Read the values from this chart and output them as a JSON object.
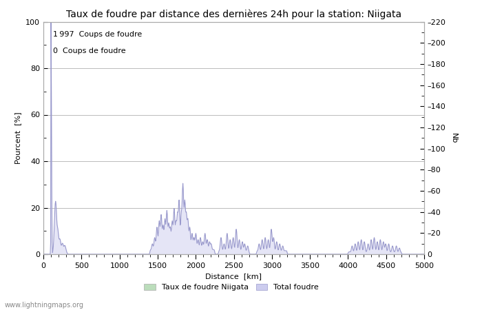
{
  "title": "Taux de foudre par distance des dernières 24h pour la station: Niigata",
  "xlabel": "Distance  [km]",
  "ylabel_left": "Pourcent  [%]",
  "ylabel_right": "Nb",
  "annotation_line1": "1 997  Coups de foudre",
  "annotation_line2": "0  Coups de foudre",
  "xlim": [
    0,
    5000
  ],
  "ylim_left": [
    0,
    100
  ],
  "ylim_right": [
    0,
    220
  ],
  "yticks_left": [
    0,
    20,
    40,
    60,
    80,
    100
  ],
  "yticks_right": [
    0,
    20,
    40,
    60,
    80,
    100,
    120,
    140,
    160,
    180,
    200,
    220
  ],
  "xticks": [
    0,
    500,
    1000,
    1500,
    2000,
    2500,
    3000,
    3500,
    4000,
    4500,
    5000
  ],
  "legend_label1": "Taux de foudre Niigata",
  "legend_label2": "Total foudre",
  "line_color": "#9999cc",
  "fill_color": "#ccccee",
  "grid_color": "#bbbbbb",
  "bg_color": "#ffffff",
  "watermark": "www.lightningmaps.org",
  "title_fontsize": 10,
  "axis_fontsize": 8,
  "tick_fontsize": 8,
  "annotation_fontsize": 8
}
